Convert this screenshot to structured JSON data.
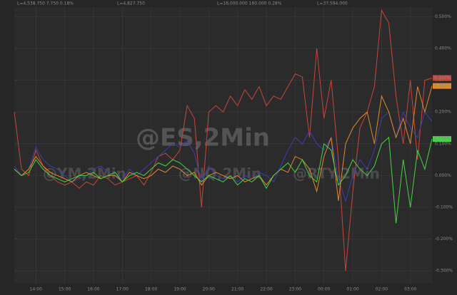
{
  "chart_data": {
    "type": "line",
    "grid": true,
    "header": [
      {
        "text": "L=4,538.750 7.750 0.18%",
        "color": "#3cd43c"
      },
      {
        "text": "L=4,827.750",
        "color": "#3cd43c"
      },
      {
        "text": "L=16,000.000 160.000 0.28%",
        "color": "#3cd43c"
      },
      {
        "text": "L=37,594.000",
        "color": "#3cd43c"
      }
    ],
    "xlim": [
      0,
      58
    ],
    "xticks": [
      {
        "value": 3,
        "label": "14:00"
      },
      {
        "value": 7,
        "label": "15:00"
      },
      {
        "value": 11,
        "label": "16:00"
      },
      {
        "value": 15,
        "label": "17:00"
      },
      {
        "value": 19,
        "label": "18:00"
      },
      {
        "value": 23,
        "label": "19:00"
      },
      {
        "value": 27,
        "label": "20:00"
      },
      {
        "value": 31,
        "label": "21:00"
      },
      {
        "value": 35,
        "label": "22:00"
      },
      {
        "value": 39,
        "label": "23:00"
      },
      {
        "value": 43,
        "label": "00:00"
      },
      {
        "value": 47,
        "label": "01:00"
      },
      {
        "value": 51,
        "label": "02:00"
      },
      {
        "value": 55,
        "label": "03:00"
      }
    ],
    "ylim": [
      -0.34,
      0.53
    ],
    "yticks": [
      {
        "value": 0.5,
        "label": "0.500%"
      },
      {
        "value": 0.4,
        "label": "0.400%"
      },
      {
        "value": 0.3,
        "label": "0.300%"
      },
      {
        "value": 0.2,
        "label": "0.200%"
      },
      {
        "value": 0.1,
        "label": "0.100%"
      },
      {
        "value": 0,
        "label": "0.000%"
      },
      {
        "value": -0.1,
        "label": "-0.100%"
      },
      {
        "value": -0.2,
        "label": "-0.200%"
      },
      {
        "value": -0.3,
        "label": "-0.300%"
      }
    ],
    "series": [
      {
        "name": "@ES,2Min",
        "color": "#c8453a",
        "end_label": "0.307%",
        "values": [
          0.2,
          0.02,
          0.0,
          0.08,
          0.03,
          0.0,
          -0.02,
          -0.03,
          -0.02,
          -0.04,
          -0.02,
          -0.03,
          0.0,
          -0.01,
          -0.03,
          -0.02,
          -0.01,
          0.0,
          -0.03,
          0.01,
          0.06,
          0.07,
          0.05,
          0.08,
          0.22,
          0.18,
          -0.1,
          0.2,
          0.22,
          0.2,
          0.25,
          0.22,
          0.27,
          0.24,
          0.28,
          0.22,
          0.25,
          0.24,
          0.28,
          0.32,
          0.31,
          0.12,
          0.4,
          0.18,
          0.3,
          0.05,
          -0.3,
          -0.05,
          0.15,
          0.2,
          0.28,
          0.52,
          0.48,
          0.25,
          0.1,
          0.3,
          0.05,
          0.3,
          0.307
        ]
      },
      {
        "name": "@YM,2Min",
        "color": "#3c3cb4",
        "values": [
          0.03,
          0.0,
          0.02,
          0.09,
          0.05,
          0.03,
          0.02,
          0.0,
          -0.02,
          -0.01,
          0.0,
          0.02,
          0.03,
          0.01,
          0.0,
          -0.01,
          0.02,
          0.0,
          0.02,
          0.04,
          0.06,
          0.08,
          0.1,
          0.09,
          0.11,
          0.07,
          -0.02,
          0.03,
          0.0,
          -0.01,
          0.0,
          -0.02,
          0.0,
          -0.01,
          0.01,
          0.0,
          -0.02,
          0.03,
          0.08,
          0.12,
          0.1,
          0.14,
          0.1,
          0.08,
          0.12,
          -0.01,
          -0.08,
          0.0,
          0.05,
          0.02,
          0.08,
          0.18,
          0.2,
          0.12,
          0.2,
          0.15,
          0.12,
          0.2,
          0.17
        ]
      },
      {
        "name": "@NQ,2Min",
        "color": "#e08a2c",
        "end_label": "0.282%",
        "values": [
          0.02,
          0.0,
          0.02,
          0.06,
          0.03,
          0.01,
          0.0,
          -0.01,
          -0.02,
          0.0,
          0.01,
          0.0,
          -0.01,
          0.0,
          0.0,
          -0.02,
          0.01,
          0.0,
          -0.01,
          0.0,
          0.02,
          0.01,
          0.03,
          0.02,
          0.0,
          0.01,
          -0.03,
          0.0,
          0.01,
          0.0,
          -0.01,
          0.0,
          -0.02,
          -0.01,
          0.0,
          -0.03,
          0.0,
          0.02,
          0.01,
          0.06,
          0.05,
          0.02,
          -0.05,
          0.06,
          0.12,
          -0.08,
          0.1,
          0.15,
          0.18,
          0.2,
          0.1,
          0.25,
          0.2,
          0.12,
          0.18,
          0.1,
          0.28,
          0.2,
          0.282
        ]
      },
      {
        "name": "@RTY,2Min",
        "color": "#44d444",
        "end_label": "0.115%",
        "values": [
          0.02,
          0.0,
          0.01,
          0.05,
          0.02,
          0.0,
          -0.01,
          -0.02,
          -0.01,
          0.0,
          0.0,
          0.01,
          -0.01,
          0.0,
          0.01,
          -0.02,
          0.0,
          0.01,
          0.0,
          0.02,
          0.04,
          0.03,
          0.05,
          0.04,
          0.02,
          0.0,
          -0.02,
          0.0,
          -0.01,
          -0.02,
          0.0,
          -0.03,
          -0.01,
          -0.02,
          0.0,
          -0.04,
          0.0,
          0.02,
          0.04,
          0.01,
          0.05,
          0.0,
          -0.02,
          0.1,
          0.08,
          -0.03,
          0.0,
          0.05,
          0.02,
          0.0,
          0.03,
          0.1,
          0.12,
          -0.15,
          0.05,
          -0.1,
          0.08,
          0.02,
          0.115
        ]
      }
    ]
  }
}
